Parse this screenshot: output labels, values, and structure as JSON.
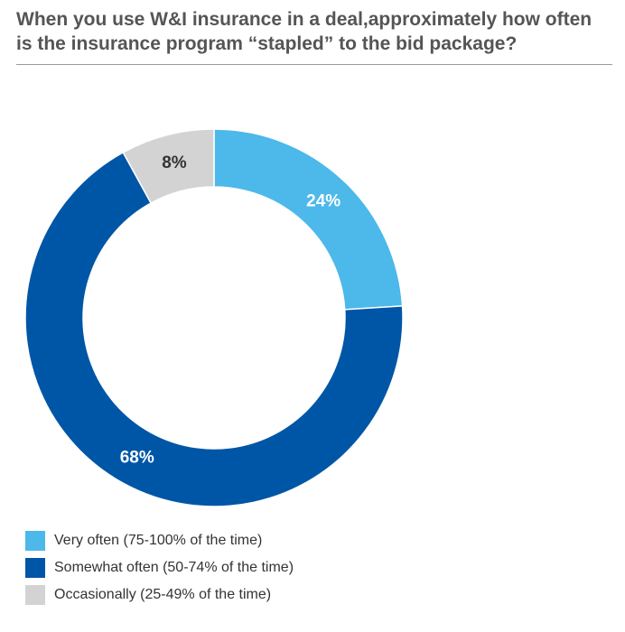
{
  "title": "When you use W&I insurance in a deal,approximately how often is the insurance program “stapled” to the bid package?",
  "chart_data": {
    "type": "pie",
    "donut": true,
    "title": "When you use W&I insurance in a deal,approximately how often is the insurance program “stapled” to the bid package?",
    "categories": [
      "Very often (75-100% of the time)",
      "Somewhat often (50-74% of the time)",
      "Occasionally (25-49% of the time)"
    ],
    "values": [
      24,
      68,
      8
    ],
    "data_labels": [
      "24%",
      "68%",
      "8%"
    ],
    "colors": [
      "#4db8ea",
      "#0056a6",
      "#d3d3d3"
    ],
    "label_colors": [
      "#ffffff",
      "#ffffff",
      "#333333"
    ],
    "start_angle": "12 o'clock",
    "direction": "clockwise",
    "legend_position": "bottom-left"
  }
}
